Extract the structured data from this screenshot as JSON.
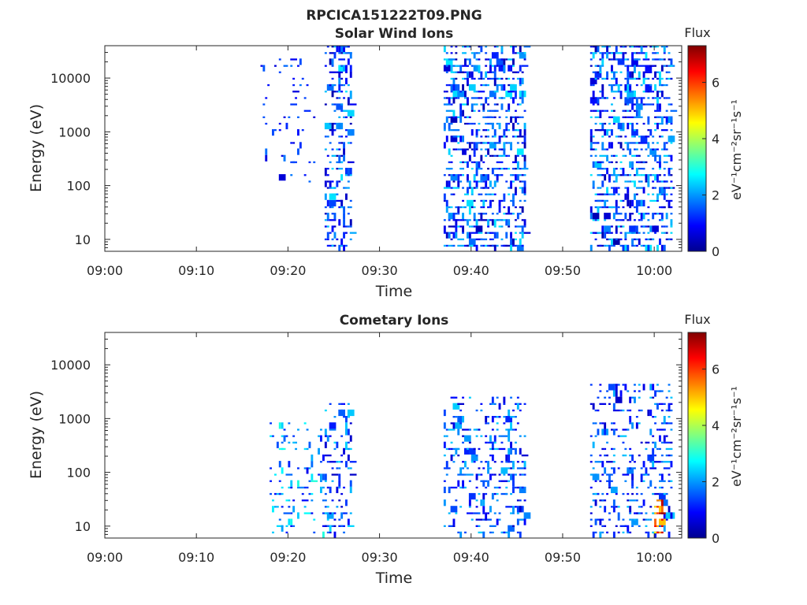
{
  "figure_title": "RPCICA151222T09.PNG",
  "colorbar": {
    "label": "eV⁻¹cm⁻²sr⁻¹s⁻¹",
    "title": "Flux",
    "range": [
      0,
      7.3
    ],
    "ticks": [
      "0",
      "2",
      "4",
      "6"
    ],
    "colormap": "jet"
  },
  "chart_data": [
    {
      "type": "heatmap",
      "title": "Solar Wind Ions",
      "xlabel": "Time",
      "ylabel": "Energy (eV)",
      "x_range": [
        "09:00",
        "10:03"
      ],
      "x_ticks": [
        "09:00",
        "09:10",
        "09:20",
        "09:30",
        "09:40",
        "09:50",
        "10:00"
      ],
      "y_scale": "log",
      "y_range": [
        6,
        40000
      ],
      "y_ticks": [
        "10",
        "100",
        "1000",
        "10000"
      ],
      "clusters": [
        {
          "t_start": "09:17",
          "t_end": "09:23",
          "e_min": 80,
          "e_max": 30000,
          "density": 0.12,
          "flux": [
            0.6,
            1.8
          ]
        },
        {
          "t_start": "09:24",
          "t_end": "09:27",
          "e_min": 6,
          "e_max": 40000,
          "density": 0.55,
          "flux": [
            0.3,
            2.6
          ]
        },
        {
          "t_start": "09:37",
          "t_end": "09:46",
          "e_min": 6,
          "e_max": 35000,
          "density": 0.55,
          "flux": [
            0.3,
            2.6
          ]
        },
        {
          "t_start": "09:53",
          "t_end": "10:02",
          "e_min": 6,
          "e_max": 35000,
          "density": 0.55,
          "flux": [
            0.3,
            2.6
          ]
        }
      ]
    },
    {
      "type": "heatmap",
      "title": "Cometary Ions",
      "xlabel": "Time",
      "ylabel": "Energy (eV)",
      "x_range": [
        "09:00",
        "10:03"
      ],
      "x_ticks": [
        "09:00",
        "09:10",
        "09:20",
        "09:30",
        "09:40",
        "09:50",
        "10:00"
      ],
      "y_scale": "log",
      "y_range": [
        6,
        40000
      ],
      "y_ticks": [
        "10",
        "100",
        "1000",
        "10000"
      ],
      "clusters": [
        {
          "t_start": "09:18",
          "t_end": "09:24",
          "e_min": 6,
          "e_max": 700,
          "density": 0.22,
          "flux": [
            0.8,
            3.0
          ]
        },
        {
          "t_start": "09:24",
          "t_end": "09:27",
          "e_min": 6,
          "e_max": 1500,
          "density": 0.35,
          "flux": [
            0.5,
            2.5
          ]
        },
        {
          "t_start": "09:37",
          "t_end": "09:46",
          "e_min": 6,
          "e_max": 2000,
          "density": 0.35,
          "flux": [
            0.5,
            2.4
          ]
        },
        {
          "t_start": "09:53",
          "t_end": "10:02",
          "e_min": 6,
          "e_max": 3500,
          "density": 0.35,
          "flux": [
            0.5,
            2.4
          ]
        },
        {
          "t_start": "10:00",
          "t_end": "10:01",
          "e_min": 6,
          "e_max": 25,
          "density": 0.9,
          "flux": [
            4.5,
            7.2
          ]
        }
      ]
    }
  ]
}
